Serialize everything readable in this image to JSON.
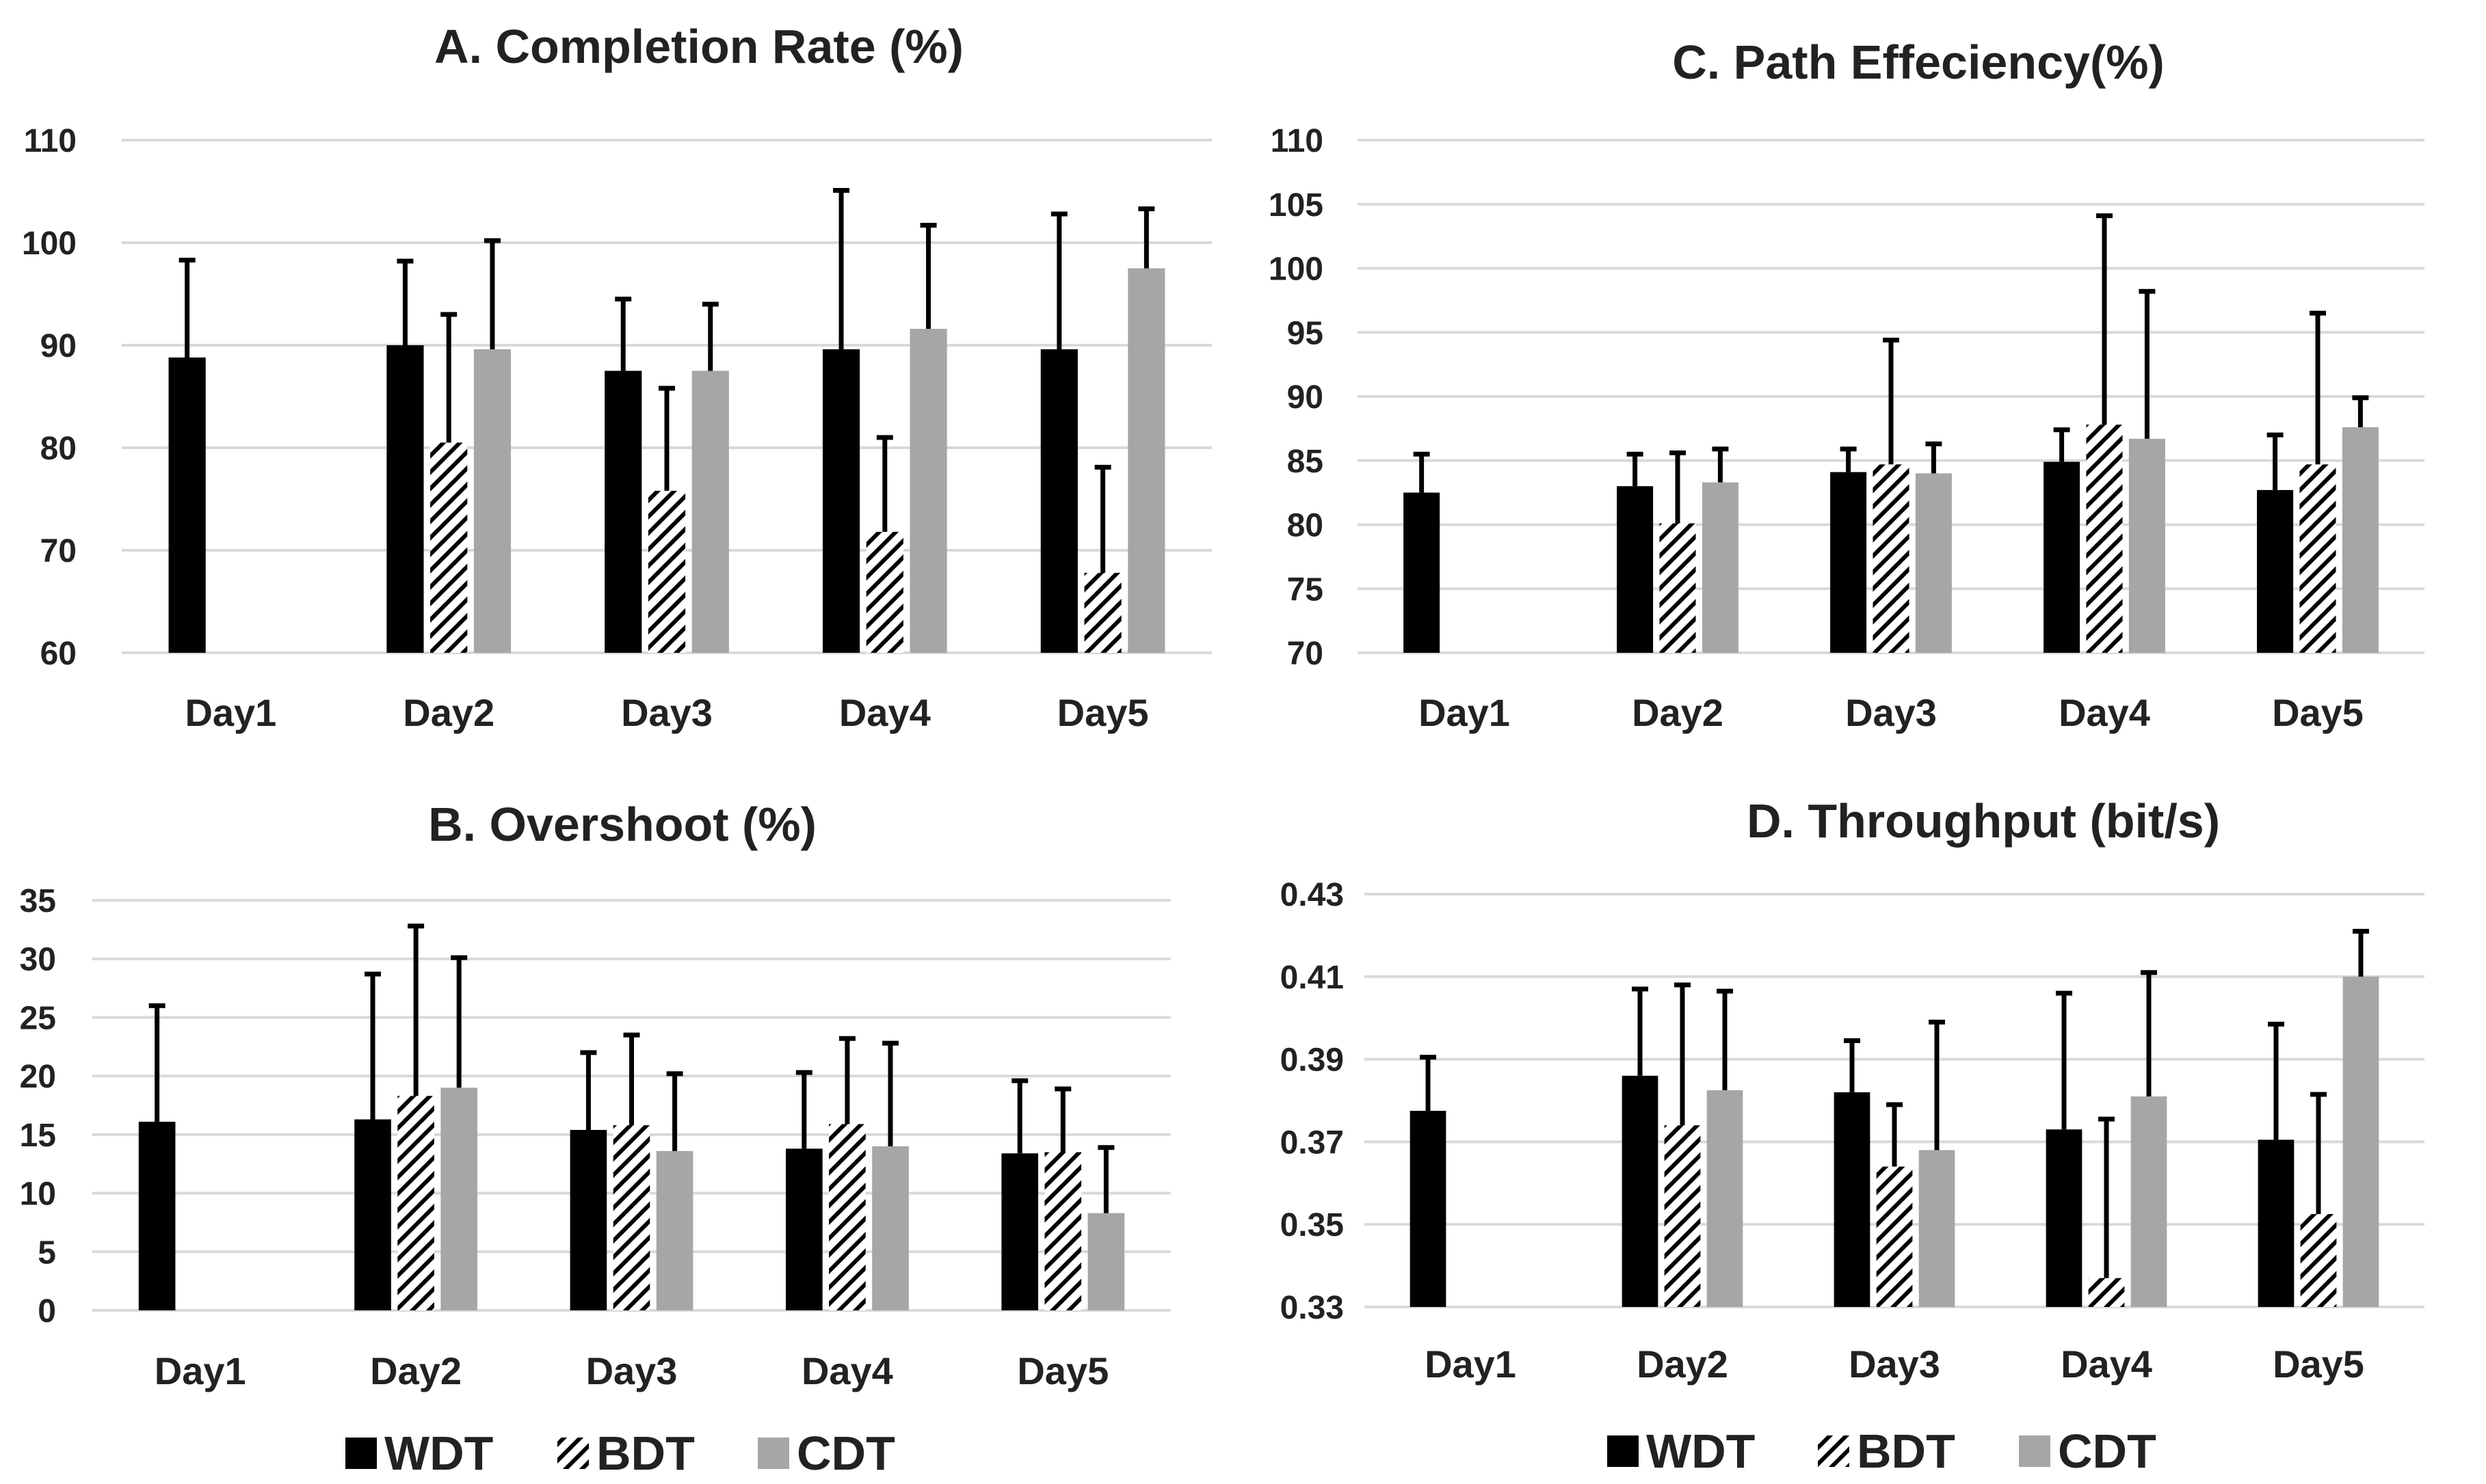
{
  "legend_labels": [
    "WDT",
    "BDT",
    "CDT"
  ],
  "colors": {
    "WDT": "#000000",
    "BDT": "hatch",
    "CDT": "#a6a6a6",
    "grid": "#d9d9d9",
    "text": "#222222"
  },
  "chart_data": [
    {
      "id": "A",
      "type": "bar",
      "title": "A. Completion Rate (%)",
      "categories": [
        "Day1",
        "Day2",
        "Day3",
        "Day4",
        "Day5"
      ],
      "ylim": [
        60,
        110
      ],
      "yticks": [
        "60",
        "70",
        "80",
        "90",
        "100",
        "110"
      ],
      "ytick_values": [
        60,
        70,
        80,
        90,
        100,
        110
      ],
      "grid": true,
      "series": [
        {
          "name": "WDT",
          "values": [
            88.8,
            90.0,
            87.5,
            89.6,
            89.6
          ],
          "errors": [
            9.5,
            8.2,
            7.0,
            15.5,
            13.2
          ]
        },
        {
          "name": "BDT",
          "values": [
            null,
            80.5,
            75.8,
            71.8,
            67.8
          ],
          "errors": [
            null,
            12.5,
            10.0,
            9.2,
            10.3
          ]
        },
        {
          "name": "CDT",
          "values": [
            null,
            89.6,
            87.5,
            91.6,
            97.5
          ],
          "errors": [
            null,
            10.6,
            6.5,
            10.1,
            5.8
          ]
        }
      ]
    },
    {
      "id": "C",
      "type": "bar",
      "title": "C. Path Effeciency(%)",
      "categories": [
        "Day1",
        "Day2",
        "Day3",
        "Day4",
        "Day5"
      ],
      "ylim": [
        70,
        110
      ],
      "yticks": [
        "70",
        "75",
        "80",
        "85",
        "90",
        "95",
        "100",
        "105",
        "110"
      ],
      "ytick_values": [
        70,
        75,
        80,
        85,
        90,
        95,
        100,
        105,
        110
      ],
      "grid": true,
      "series": [
        {
          "name": "WDT",
          "values": [
            82.5,
            83.0,
            84.1,
            84.9,
            82.7
          ],
          "errors": [
            3.0,
            2.5,
            1.8,
            2.5,
            4.3
          ]
        },
        {
          "name": "BDT",
          "values": [
            null,
            80.1,
            84.7,
            87.8,
            84.7
          ],
          "errors": [
            null,
            5.5,
            9.7,
            16.3,
            11.8
          ]
        },
        {
          "name": "CDT",
          "values": [
            null,
            83.3,
            84.0,
            86.7,
            87.6
          ],
          "errors": [
            null,
            2.6,
            2.3,
            11.5,
            2.3
          ]
        }
      ]
    },
    {
      "id": "B",
      "type": "bar",
      "title": "B. Overshoot  (%)",
      "categories": [
        "Day1",
        "Day2",
        "Day3",
        "Day4",
        "Day5"
      ],
      "ylim": [
        0,
        35
      ],
      "yticks": [
        "0",
        "5",
        "10",
        "15",
        "20",
        "25",
        "30",
        "35"
      ],
      "ytick_values": [
        0,
        5,
        10,
        15,
        20,
        25,
        30,
        35
      ],
      "grid": true,
      "series": [
        {
          "name": "WDT",
          "values": [
            16.1,
            16.3,
            15.4,
            13.8,
            13.4
          ],
          "errors": [
            9.9,
            12.4,
            6.6,
            6.5,
            6.2
          ]
        },
        {
          "name": "BDT",
          "values": [
            null,
            18.3,
            15.8,
            15.9,
            13.5
          ],
          "errors": [
            null,
            14.5,
            7.7,
            7.3,
            5.4
          ]
        },
        {
          "name": "CDT",
          "values": [
            null,
            19.0,
            13.6,
            14.0,
            8.3
          ],
          "errors": [
            null,
            11.1,
            6.6,
            8.8,
            5.6
          ]
        }
      ]
    },
    {
      "id": "D",
      "type": "bar",
      "title": "D. Throughput (bit/s)",
      "categories": [
        "Day1",
        "Day2",
        "Day3",
        "Day4",
        "Day5"
      ],
      "ylim": [
        0.33,
        0.43
      ],
      "yticks": [
        "0.33",
        "0.35",
        "0.37",
        "0.39",
        "0.41",
        "0.43"
      ],
      "ytick_values": [
        0.33,
        0.35,
        0.37,
        0.39,
        0.41,
        0.43
      ],
      "grid": true,
      "series": [
        {
          "name": "WDT",
          "values": [
            0.3775,
            0.386,
            0.382,
            0.373,
            0.3705
          ],
          "errors": [
            0.013,
            0.021,
            0.0125,
            0.033,
            0.028
          ]
        },
        {
          "name": "BDT",
          "values": [
            null,
            0.374,
            0.364,
            0.337,
            0.3525
          ],
          "errors": [
            null,
            0.034,
            0.015,
            0.0385,
            0.029
          ]
        },
        {
          "name": "CDT",
          "values": [
            null,
            0.3825,
            0.368,
            0.381,
            0.41
          ],
          "errors": [
            null,
            0.024,
            0.031,
            0.03,
            0.011
          ]
        }
      ]
    }
  ]
}
